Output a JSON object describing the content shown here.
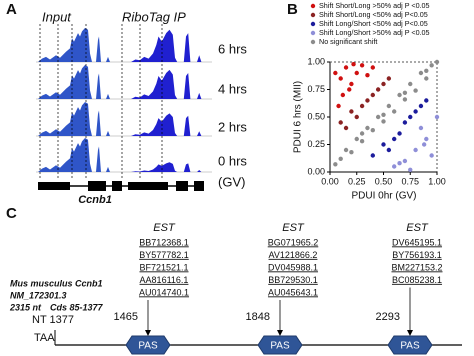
{
  "panel_a": {
    "label": "A",
    "track_labels": [
      "Input",
      "RiboTag IP"
    ],
    "time_labels": [
      "6 hrs",
      "4 hrs",
      "2 hrs",
      "0 hrs",
      "(GV)"
    ],
    "gene": "Ccnb1"
  },
  "chart_data": {
    "type": "scatter",
    "panel_label": "B",
    "xlabel": "PDUI 0hr (GV)",
    "ylabel": "PDUI 6 hrs (MII)",
    "xlim": [
      0,
      1
    ],
    "ylim": [
      0,
      1
    ],
    "xticks": [
      {
        "value": 0,
        "label": "0.00"
      },
      {
        "value": 0.25,
        "label": "0.25"
      },
      {
        "value": 0.5,
        "label": "0.50"
      },
      {
        "value": 0.75,
        "label": "0.75"
      },
      {
        "value": 1,
        "label": "1.00"
      }
    ],
    "yticks": [
      {
        "value": 0,
        "label": "0.00"
      },
      {
        "value": 0.25,
        "label": "0.25"
      },
      {
        "value": 0.5,
        "label": "0.50"
      },
      {
        "value": 0.75,
        "label": "0.75"
      },
      {
        "value": 1,
        "label": "1.00"
      }
    ],
    "legend": "top-left",
    "series": [
      {
        "name": "Shift Short/Long >50% adj P <0.05",
        "color": "#d01010",
        "x": [
          0.05,
          0.1,
          0.15,
          0.2,
          0.25,
          0.3,
          0.12,
          0.22,
          0.35,
          0.08,
          0.4,
          0.18
        ],
        "values": [
          0.9,
          0.85,
          0.95,
          0.8,
          0.9,
          0.97,
          0.7,
          0.98,
          0.88,
          0.6,
          0.95,
          0.75
        ]
      },
      {
        "name": "Shift Short/Long <50% adj P<0.05",
        "color": "#8b2323",
        "x": [
          0.1,
          0.2,
          0.3,
          0.4,
          0.5,
          0.15,
          0.35,
          0.45,
          0.25,
          0.55
        ],
        "values": [
          0.45,
          0.55,
          0.6,
          0.7,
          0.8,
          0.4,
          0.65,
          0.75,
          0.5,
          0.85
        ]
      },
      {
        "name": "Shift Long/Short <50% adj P<0.05",
        "color": "#1c1c9c",
        "x": [
          0.4,
          0.5,
          0.6,
          0.7,
          0.8,
          0.9,
          0.55,
          0.65,
          0.75,
          0.85
        ],
        "values": [
          0.15,
          0.25,
          0.3,
          0.45,
          0.55,
          0.65,
          0.2,
          0.35,
          0.5,
          0.6
        ]
      },
      {
        "name": "Shift Long/Short >50% adj P <0.05",
        "color": "#8f8fd8",
        "x": [
          0.6,
          0.7,
          0.8,
          0.9,
          0.95,
          0.75,
          0.85,
          1.0,
          0.65,
          0.88
        ],
        "values": [
          0.05,
          0.1,
          0.2,
          0.3,
          0.15,
          0.02,
          0.4,
          0.5,
          0.08,
          0.25
        ]
      },
      {
        "name": "No significant shift",
        "color": "#8c8c8c",
        "x": [
          0.05,
          0.1,
          0.15,
          0.2,
          0.25,
          0.3,
          0.35,
          0.4,
          0.45,
          0.5,
          0.55,
          0.6,
          0.65,
          0.7,
          0.75,
          0.8,
          0.85,
          0.9,
          0.95,
          1.0,
          0.3,
          0.5,
          0.7,
          0.9
        ],
        "values": [
          0.07,
          0.12,
          0.2,
          0.18,
          0.3,
          0.28,
          0.4,
          0.38,
          0.5,
          0.46,
          0.6,
          0.55,
          0.7,
          0.66,
          0.8,
          0.74,
          0.9,
          0.85,
          0.97,
          1.0,
          0.35,
          0.52,
          0.72,
          0.92
        ]
      }
    ]
  },
  "panel_c": {
    "label": "C",
    "transcript": [
      "Mus musculus Ccnb1",
      "NM_172301.3",
      "2315 nt",
      "Cds 85-1377"
    ],
    "stop_position": "NT 1377",
    "stop_codon": "TAA",
    "sites": [
      {
        "position": "1465",
        "signal": "PAS",
        "header": "EST",
        "ests": [
          "BB712368.1",
          "BY577782.1",
          "BF721521.1",
          "AA816116.1",
          "AU014740.1"
        ]
      },
      {
        "position": "1848",
        "signal": "PAS",
        "header": "EST",
        "ests": [
          "BG071965.2",
          "AV121866.2",
          "DV045988.1",
          "BB729530.1",
          "AU045643.1"
        ]
      },
      {
        "position": "2293",
        "signal": "PAS",
        "header": "EST",
        "ests": [
          "DV645195.1",
          "BY756193.1",
          "BM227153.2",
          "BC085238.1"
        ]
      }
    ]
  }
}
